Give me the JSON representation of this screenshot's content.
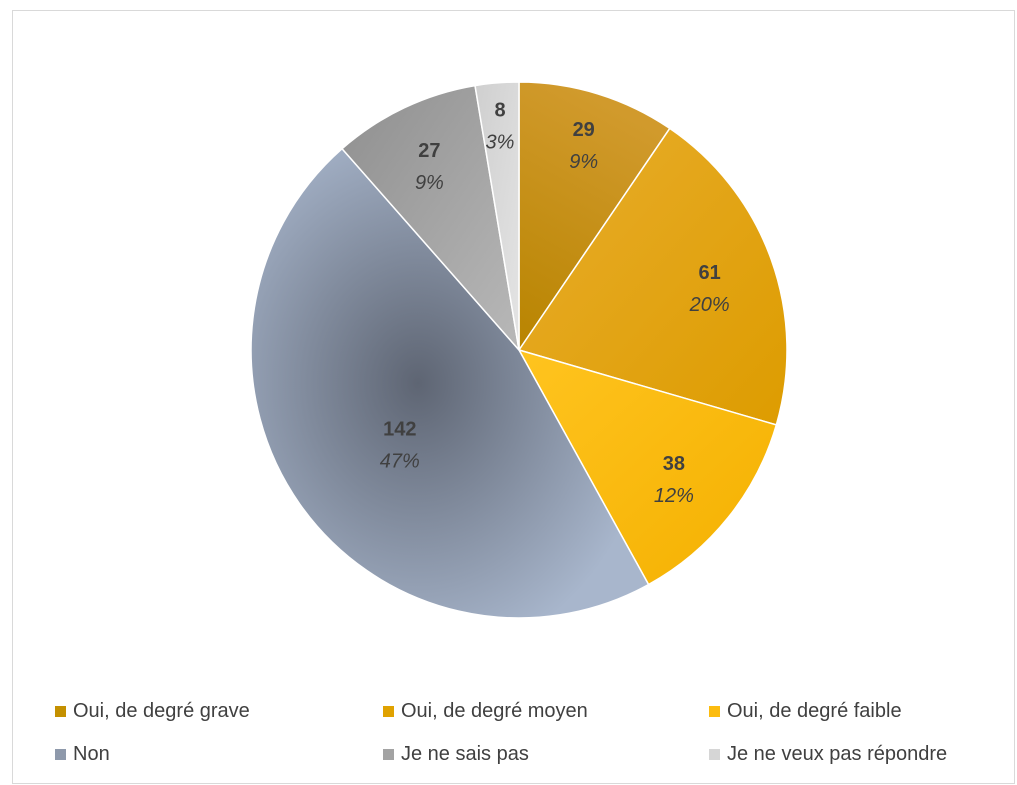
{
  "chart_data": {
    "type": "pie",
    "title": "",
    "start_angle_deg": 0,
    "direction": "clockwise",
    "legend_position": "bottom",
    "slices": [
      {
        "label": "Oui, de degré grave",
        "value": 29,
        "percent_label": "9%",
        "color": "#c49000"
      },
      {
        "label": "Oui, de degré moyen",
        "value": 61,
        "percent_label": "20%",
        "color": "#e0a200"
      },
      {
        "label": "Oui, de degré faible",
        "value": 38,
        "percent_label": "12%",
        "color": "#fcbc0f"
      },
      {
        "label": "Non",
        "value": 142,
        "percent_label": "47%",
        "color": "#8e99ab"
      },
      {
        "label": "Je ne sais pas",
        "value": 27,
        "percent_label": "9%",
        "color": "#a3a3a3"
      },
      {
        "label": "Je ne veux pas répondre",
        "value": 8,
        "percent_label": "3%",
        "color": "#d6d6d6"
      }
    ]
  }
}
